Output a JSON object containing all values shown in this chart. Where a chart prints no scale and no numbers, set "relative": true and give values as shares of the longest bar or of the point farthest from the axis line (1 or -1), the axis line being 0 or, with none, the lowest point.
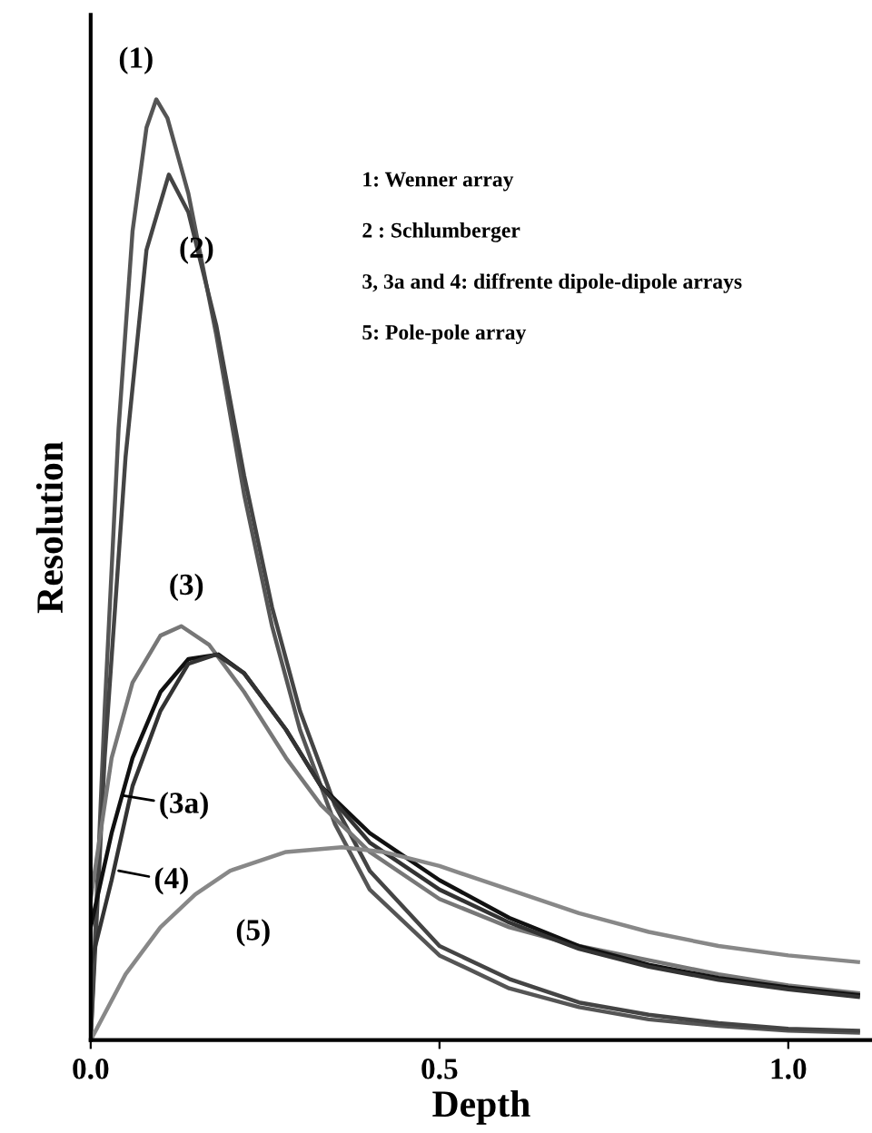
{
  "chart_data": {
    "type": "line",
    "relative": true,
    "xlabel": "Depth",
    "ylabel": "Resolution",
    "xlim": [
      0,
      1.12
    ],
    "xticks": [
      {
        "value": 0,
        "label": "0.0"
      },
      {
        "value": 0.5,
        "label": "0.5"
      },
      {
        "value": 1.0,
        "label": "1.0"
      }
    ],
    "grid": false,
    "marker": "none",
    "line_style": "solid",
    "series": [
      {
        "color": "#555555",
        "x": [
          0,
          0.02,
          0.04,
          0.06,
          0.08,
          0.094,
          0.11,
          0.14,
          0.18,
          0.22,
          0.26,
          0.3,
          0.35,
          0.4,
          0.5,
          0.6,
          0.7,
          0.8,
          0.9,
          1.0,
          1.1
        ],
        "values": [
          0,
          0.35,
          0.65,
          0.86,
          0.97,
          1.0,
          0.98,
          0.9,
          0.75,
          0.58,
          0.44,
          0.33,
          0.23,
          0.16,
          0.09,
          0.055,
          0.035,
          0.022,
          0.015,
          0.01,
          0.008
        ]
      },
      {
        "color": "#444444",
        "x": [
          0,
          0.02,
          0.05,
          0.08,
          0.112,
          0.14,
          0.18,
          0.22,
          0.26,
          0.3,
          0.35,
          0.4,
          0.5,
          0.6,
          0.7,
          0.8,
          0.9,
          1.0,
          1.1
        ],
        "values": [
          0,
          0.3,
          0.62,
          0.84,
          0.92,
          0.88,
          0.76,
          0.6,
          0.46,
          0.35,
          0.25,
          0.18,
          0.1,
          0.065,
          0.04,
          0.027,
          0.018,
          0.012,
          0.01
        ]
      },
      {
        "color": "#777777",
        "x": [
          0,
          0.03,
          0.06,
          0.1,
          0.13,
          0.17,
          0.22,
          0.28,
          0.33,
          0.4,
          0.5,
          0.6,
          0.7,
          0.8,
          0.9,
          1.0,
          1.1
        ],
        "values": [
          0.15,
          0.3,
          0.38,
          0.43,
          0.44,
          0.42,
          0.37,
          0.3,
          0.25,
          0.2,
          0.15,
          0.12,
          0.1,
          0.085,
          0.07,
          0.058,
          0.05
        ]
      },
      {
        "color": "#111111",
        "x": [
          0,
          0.03,
          0.06,
          0.1,
          0.14,
          0.183,
          0.22,
          0.28,
          0.33,
          0.4,
          0.5,
          0.6,
          0.7,
          0.8,
          0.9,
          1.0,
          1.1
        ],
        "values": [
          0.12,
          0.22,
          0.3,
          0.37,
          0.405,
          0.41,
          0.39,
          0.33,
          0.27,
          0.22,
          0.17,
          0.13,
          0.1,
          0.08,
          0.066,
          0.056,
          0.048
        ]
      },
      {
        "color": "#333333",
        "x": [
          0,
          0.03,
          0.06,
          0.1,
          0.14,
          0.18,
          0.22,
          0.28,
          0.33,
          0.4,
          0.5,
          0.6,
          0.7,
          0.8,
          0.9,
          1.0,
          1.1
        ],
        "values": [
          0.08,
          0.17,
          0.27,
          0.35,
          0.4,
          0.41,
          0.39,
          0.33,
          0.27,
          0.21,
          0.16,
          0.125,
          0.097,
          0.078,
          0.064,
          0.054,
          0.046
        ]
      },
      {
        "color": "#888888",
        "x": [
          0,
          0.05,
          0.1,
          0.15,
          0.2,
          0.28,
          0.36,
          0.42,
          0.5,
          0.6,
          0.7,
          0.8,
          0.9,
          1.0,
          1.1
        ],
        "values": [
          0,
          0.07,
          0.12,
          0.155,
          0.18,
          0.2,
          0.205,
          0.2,
          0.185,
          0.16,
          0.135,
          0.115,
          0.1,
          0.09,
          0.083
        ]
      }
    ],
    "annotations": [
      {
        "text": "(1)",
        "x": 0.094,
        "y": 1.0
      },
      {
        "text": "(2)",
        "x": 0.112,
        "y": 0.92
      },
      {
        "text": "(3)",
        "x": 0.13,
        "y": 0.44
      },
      {
        "text": "(3a)",
        "x": 0.047,
        "y": 0.26
      },
      {
        "text": "(4)",
        "x": 0.04,
        "y": 0.18
      },
      {
        "text": "(5)",
        "x": 0.28,
        "y": 0.2
      },
      "1: Wenner array",
      "2 : Schlumberger",
      "3, 3a and 4: diffrente dipole-dipole arrays",
      "5: Pole-pole array"
    ]
  }
}
